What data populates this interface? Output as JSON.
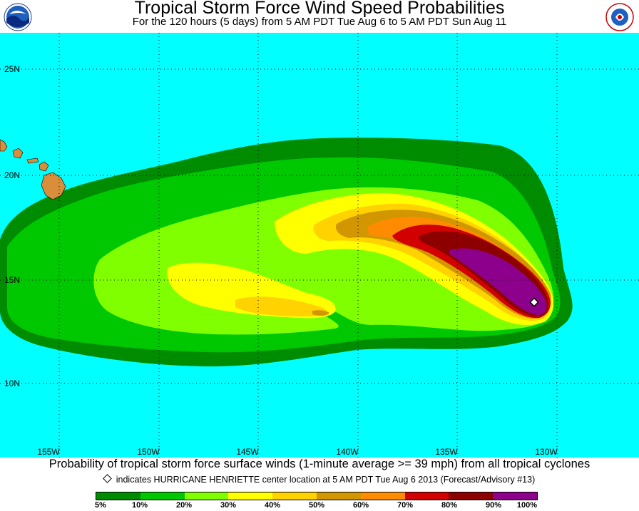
{
  "header": {
    "title": "Tropical Storm Force Wind Speed Probabilities",
    "subtitle": "For the 120 hours (5 days) from 5 AM PDT Tue Aug 6 to 5 AM PDT Sun Aug 11",
    "left_logo": "noaa-logo",
    "right_logo": "national-weather-service-logo"
  },
  "map": {
    "ocean_color": "#00ffff",
    "land_color": "#d98e3c",
    "lat_labels": [
      "25N",
      "20N",
      "15N",
      "10N"
    ],
    "lon_labels": [
      "155W",
      "150W",
      "145W",
      "140W",
      "135W",
      "130W"
    ]
  },
  "footer": {
    "caption": "Probability of tropical storm force surface winds (1-minute average >= 39 mph) from all tropical cyclones",
    "marker_note": "indicates HURRICANE HENRIETTE center location at 5 AM PDT Tue Aug 6 2013 (Forecast/Advisory #13)"
  },
  "legend": {
    "colors": [
      "#008c00",
      "#00c800",
      "#80ff00",
      "#ffff00",
      "#ffd200",
      "#d29600",
      "#ff8c00",
      "#d20000",
      "#8c0000",
      "#8c008c"
    ],
    "labels": [
      "5%",
      "10%",
      "20%",
      "30%",
      "40%",
      "50%",
      "60%",
      "70%",
      "80%",
      "90%",
      "100%"
    ]
  }
}
